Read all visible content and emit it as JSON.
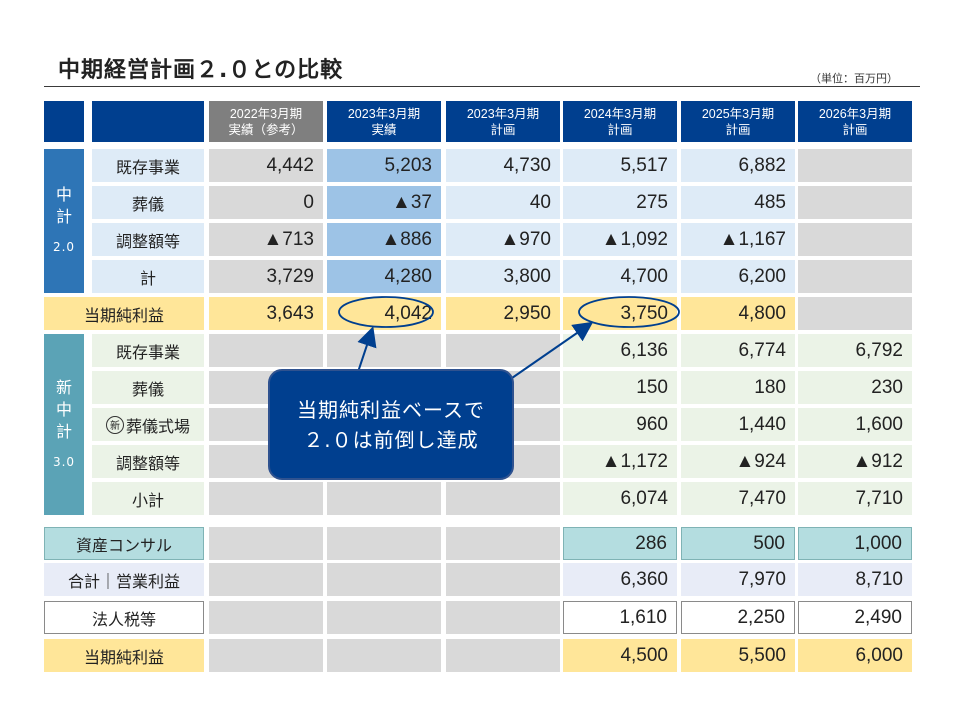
{
  "title": "中期経営計画２.０との比較",
  "unit": "（単位：百万円）",
  "header": {
    "cols": [
      {
        "l1": "2022年3月期",
        "l2": "実績（参考）"
      },
      {
        "l1": "2023年3月期",
        "l2": "実績"
      },
      {
        "l1": "2023年3月期",
        "l2": "計画"
      },
      {
        "l1": "2024年3月期",
        "l2": "計画"
      },
      {
        "l1": "2025年3月期",
        "l2": "計画"
      },
      {
        "l1": "2026年3月期",
        "l2": "計画"
      }
    ]
  },
  "group1": {
    "l1": "中",
    "l2": "計",
    "l3": "2.0"
  },
  "group2": {
    "l1": "新",
    "l2": "中",
    "l3": "計",
    "l4": "3.0"
  },
  "rows": {
    "r1": {
      "label": "既存事業",
      "v": [
        "4,442",
        "5,203",
        "4,730",
        "5,517",
        "6,882",
        ""
      ]
    },
    "r2": {
      "label": "葬儀",
      "v": [
        "0",
        "▲37",
        "40",
        "275",
        "485",
        ""
      ]
    },
    "r3": {
      "label": "調整額等",
      "v": [
        "▲713",
        "▲886",
        "▲970",
        "▲1,092",
        "▲1,167",
        ""
      ]
    },
    "r4": {
      "label": "計",
      "v": [
        "3,729",
        "4,280",
        "3,800",
        "4,700",
        "6,200",
        ""
      ]
    },
    "r5": {
      "label": "当期純利益",
      "v": [
        "3,643",
        "4,042",
        "2,950",
        "3,750",
        "4,800",
        ""
      ]
    },
    "r6": {
      "label": "既存事業",
      "v": [
        "",
        "",
        "",
        "6,136",
        "6,774",
        "6,792"
      ]
    },
    "r7": {
      "label": "葬儀",
      "v": [
        "",
        "",
        "",
        "150",
        "180",
        "230"
      ]
    },
    "r8": {
      "label": "葬儀式場",
      "mark": "新",
      "v": [
        "",
        "",
        "",
        "960",
        "1,440",
        "1,600"
      ]
    },
    "r9": {
      "label": "調整額等",
      "v": [
        "",
        "",
        "",
        "▲1,172",
        "▲924",
        "▲912"
      ]
    },
    "r10": {
      "label": "小計",
      "v": [
        "",
        "",
        "",
        "6,074",
        "7,470",
        "7,710"
      ]
    },
    "r11": {
      "label": "資産コンサル",
      "v": [
        "",
        "",
        "",
        "286",
        "500",
        "1,000"
      ]
    },
    "r12": {
      "label": "合計｜営業利益",
      "v": [
        "",
        "",
        "",
        "6,360",
        "7,970",
        "8,710"
      ]
    },
    "r13": {
      "label": "法人税等",
      "v": [
        "",
        "",
        "",
        "1,610",
        "2,250",
        "2,490"
      ]
    },
    "r14": {
      "label": "当期純利益",
      "v": [
        "",
        "",
        "",
        "4,500",
        "5,500",
        "6,000"
      ]
    }
  },
  "callout": {
    "line1": "当期純利益ベースで",
    "line2": "２.０は前倒し達成"
  },
  "colors": {
    "navy": "#003f8f",
    "blue": "#9dc3e6",
    "gold": "#ffe699"
  }
}
